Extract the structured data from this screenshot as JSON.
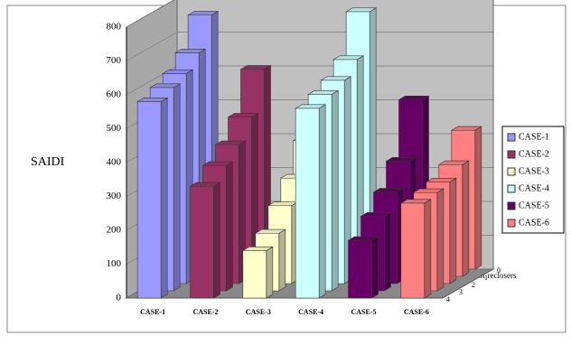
{
  "chart_data": {
    "type": "bar3d",
    "y_label": "SAIDI",
    "depth_label": "Number of reclosers",
    "depth_categories": [
      "0",
      "1",
      "2",
      "3",
      "4"
    ],
    "ylim": [
      0,
      800
    ],
    "yticks": [
      0,
      100,
      200,
      300,
      400,
      500,
      600,
      700,
      800
    ],
    "grid": true,
    "legend": "right",
    "series": [
      {
        "name": "CASE-1",
        "color": "#9999ff",
        "values": [
          750,
          660,
          620,
          600,
          580
        ]
      },
      {
        "name": "CASE-2",
        "color": "#993366",
        "values": [
          590,
          470,
          410,
          370,
          330
        ]
      },
      {
        "name": "CASE-3",
        "color": "#ffffcc",
        "values": [
          380,
          290,
          230,
          170,
          140
        ]
      },
      {
        "name": "CASE-4",
        "color": "#ccffff",
        "values": [
          760,
          640,
          600,
          580,
          560
        ]
      },
      {
        "name": "CASE-5",
        "color": "#660066",
        "values": [
          500,
          340,
          270,
          220,
          170
        ]
      },
      {
        "name": "CASE-6",
        "color": "#ff8080",
        "values": [
          410,
          330,
          300,
          290,
          280
        ]
      }
    ]
  }
}
